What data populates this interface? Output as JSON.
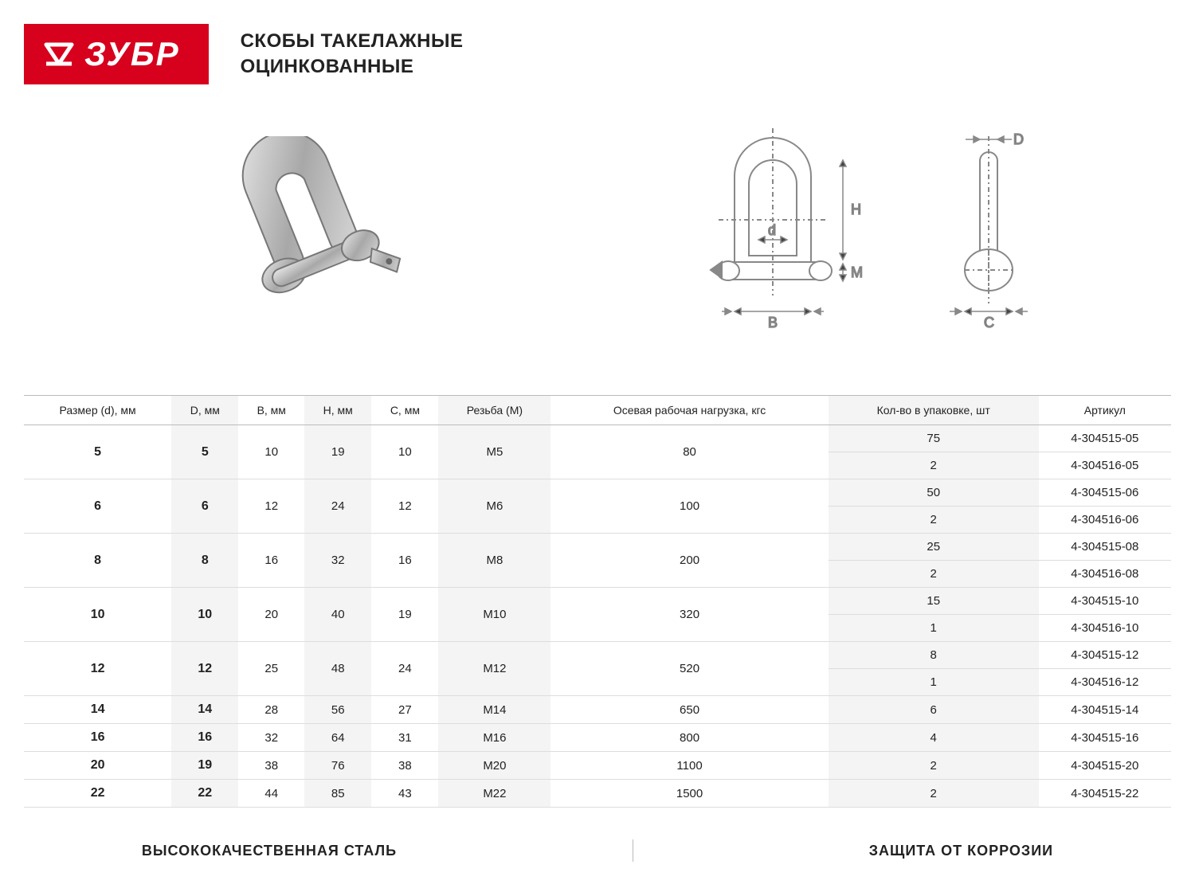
{
  "brand": "ЗУБР",
  "title_line1": "СКОБЫ ТАКЕЛАЖНЫЕ",
  "title_line2": "ОЦИНКОВАННЫЕ",
  "diagram_labels": {
    "D": "D",
    "H": "H",
    "d": "d",
    "M": "M",
    "B": "B",
    "C": "C"
  },
  "footer": {
    "left": "ВЫСОКОКАЧЕСТВЕННАЯ СТАЛЬ",
    "right": "ЗАЩИТА ОТ КОРРОЗИИ"
  },
  "colors": {
    "brand_red": "#d7001d",
    "alt_row": "#f4f4f4",
    "border": "#bbbbbb",
    "row_border": "#dddddd",
    "diagram_line": "#888888",
    "text": "#222222"
  },
  "table": {
    "columns": [
      "Размер (d), мм",
      "D, мм",
      "B, мм",
      "H, мм",
      "C, мм",
      "Резьба (M)",
      "Осевая рабочая нагрузка, кгс",
      "Кол-во в упаковке, шт",
      "Артикул"
    ],
    "alt_columns_idx": [
      1,
      3,
      5,
      7
    ],
    "bold_columns_idx": [
      0,
      1
    ],
    "groups": [
      {
        "base": [
          "5",
          "5",
          "10",
          "19",
          "10",
          "M5",
          "80"
        ],
        "variants": [
          [
            "75",
            "4-304515-05"
          ],
          [
            "2",
            "4-304516-05"
          ]
        ]
      },
      {
        "base": [
          "6",
          "6",
          "12",
          "24",
          "12",
          "M6",
          "100"
        ],
        "variants": [
          [
            "50",
            "4-304515-06"
          ],
          [
            "2",
            "4-304516-06"
          ]
        ]
      },
      {
        "base": [
          "8",
          "8",
          "16",
          "32",
          "16",
          "M8",
          "200"
        ],
        "variants": [
          [
            "25",
            "4-304515-08"
          ],
          [
            "2",
            "4-304516-08"
          ]
        ]
      },
      {
        "base": [
          "10",
          "10",
          "20",
          "40",
          "19",
          "M10",
          "320"
        ],
        "variants": [
          [
            "15",
            "4-304515-10"
          ],
          [
            "1",
            "4-304516-10"
          ]
        ]
      },
      {
        "base": [
          "12",
          "12",
          "25",
          "48",
          "24",
          "M12",
          "520"
        ],
        "variants": [
          [
            "8",
            "4-304515-12"
          ],
          [
            "1",
            "4-304516-12"
          ]
        ]
      },
      {
        "base": [
          "14",
          "14",
          "28",
          "56",
          "27",
          "M14",
          "650"
        ],
        "variants": [
          [
            "6",
            "4-304515-14"
          ]
        ]
      },
      {
        "base": [
          "16",
          "16",
          "32",
          "64",
          "31",
          "M16",
          "800"
        ],
        "variants": [
          [
            "4",
            "4-304515-16"
          ]
        ]
      },
      {
        "base": [
          "20",
          "19",
          "38",
          "76",
          "38",
          "M20",
          "1100"
        ],
        "variants": [
          [
            "2",
            "4-304515-20"
          ]
        ]
      },
      {
        "base": [
          "22",
          "22",
          "44",
          "85",
          "43",
          "M22",
          "1500"
        ],
        "variants": [
          [
            "2",
            "4-304515-22"
          ]
        ]
      }
    ]
  }
}
